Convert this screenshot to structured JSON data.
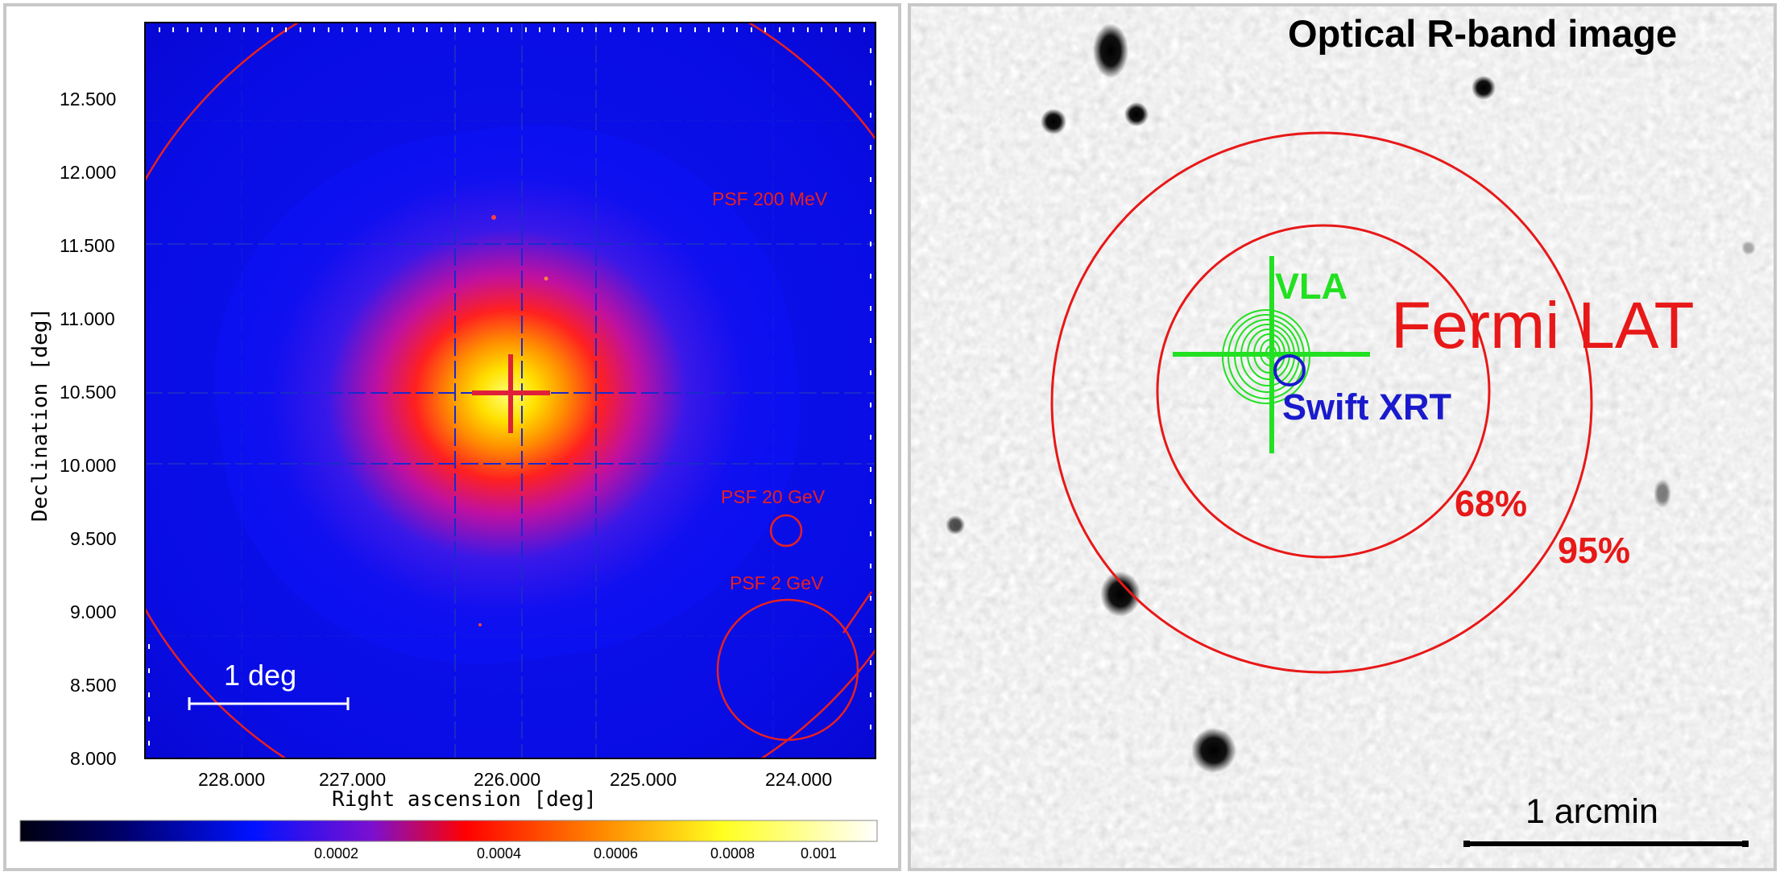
{
  "left_panel": {
    "y_axis": {
      "title": "Declination [deg]",
      "ticks": [
        "12.500",
        "12.000",
        "11.500",
        "11.000",
        "10.500",
        "10.000",
        "9.500",
        "9.000",
        "8.500",
        "8.000"
      ]
    },
    "x_axis": {
      "title": "Right ascension [deg]",
      "ticks": [
        "228.000",
        "227.000",
        "226.000",
        "225.000",
        "224.000"
      ]
    },
    "psf_labels": {
      "psf_200mev": "PSF 200 MeV",
      "psf_20gev": "PSF 20 GeV",
      "psf_2gev": "PSF 2 GeV"
    },
    "scale_bar_label": "1 deg",
    "colorbar": {
      "ticks": [
        "0.0002",
        "0.0004",
        "0.0006",
        "0.0008",
        "0.001"
      ],
      "colors": [
        "#000010",
        "#0000a0",
        "#0010ff",
        "#ff0000",
        "#ff8000",
        "#ffff00",
        "#ffffff"
      ]
    },
    "colors": {
      "psf_circle": "#e82020",
      "grid": "#1a2acc",
      "marker": "#e0203a"
    }
  },
  "right_panel": {
    "title": "Optical R-band image",
    "labels": {
      "vla": "VLA",
      "fermi": "Fermi LAT",
      "swift": "Swift XRT",
      "p68": "68%",
      "p95": "95%"
    },
    "scale_bar_label": "1 arcmin",
    "colors": {
      "vla": "#22e022",
      "fermi": "#e81818",
      "swift": "#1a1acc"
    }
  }
}
